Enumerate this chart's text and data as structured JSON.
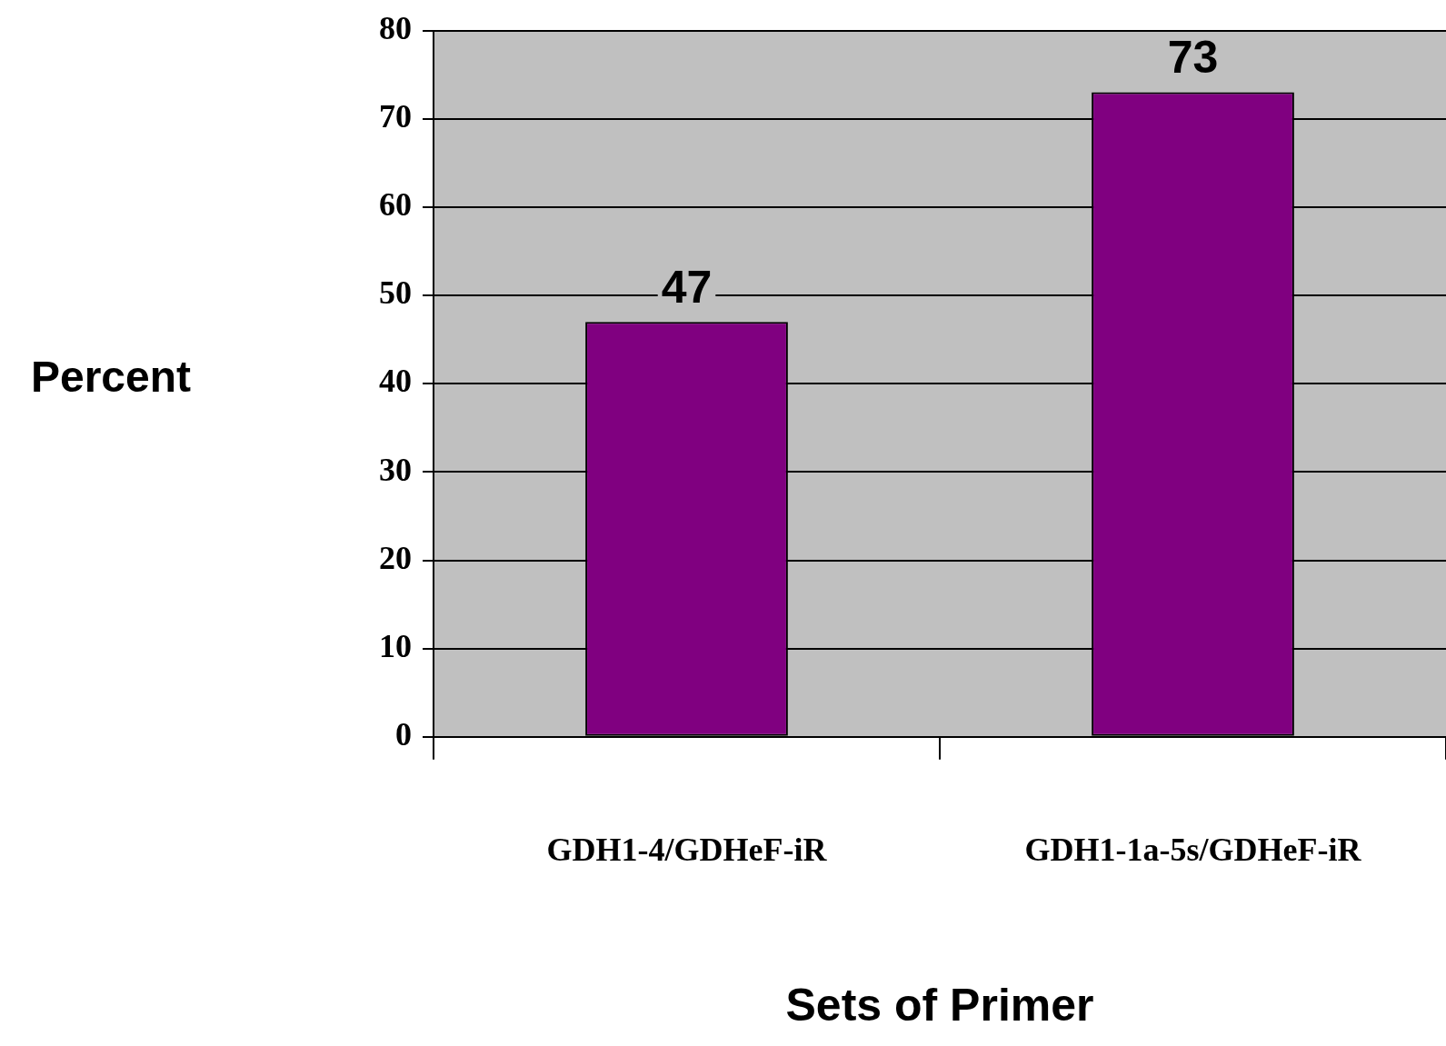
{
  "chart_data": {
    "type": "bar",
    "xlabel": "Sets of Primer",
    "ylabel": "Percent",
    "categories": [
      "GDH1-4/GDHeF-iR",
      "GDH1-1a-5s/GDHeF-iR"
    ],
    "values": [
      47,
      73
    ],
    "color": "#800080",
    "ylim": [
      0,
      80
    ],
    "yticks": [
      0,
      10,
      20,
      30,
      40,
      50,
      60,
      70,
      80
    ],
    "grid": "y",
    "legend": false,
    "data_labels": true
  }
}
